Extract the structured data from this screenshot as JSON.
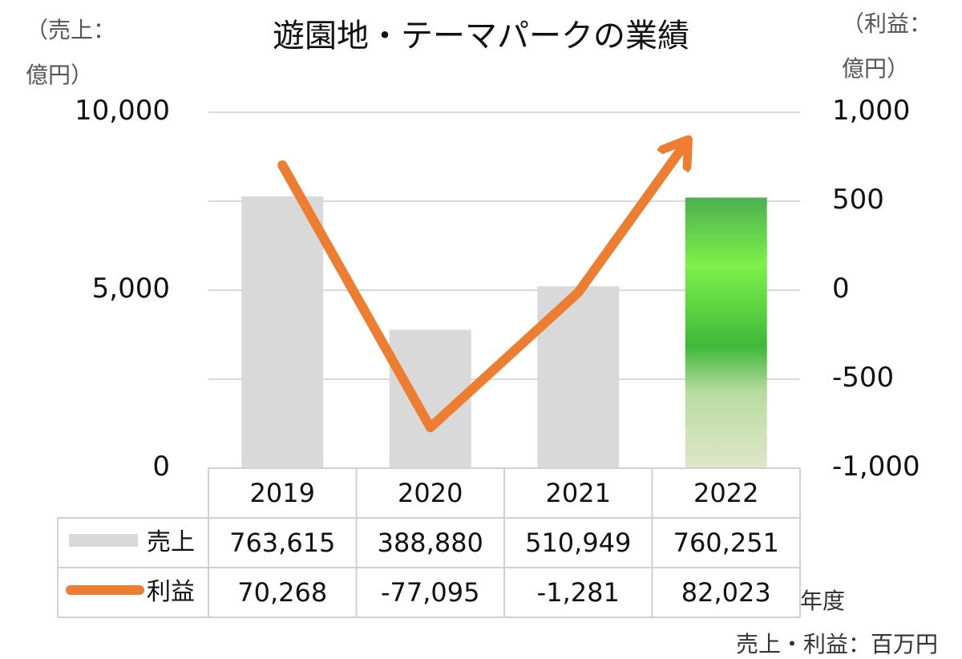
{
  "title": "遊園地・テーマパークの業績",
  "left_axis_unit": [
    "（売上：",
    "億円）"
  ],
  "right_axis_unit": [
    "（利益：",
    "億円）"
  ],
  "footnote": "売上・利益：百万円",
  "x_axis_label": "年度",
  "colors": {
    "sales_bar": "#d9d9d9",
    "profit_line": "#ed7d31",
    "highlight_bar_top": "#4caf50",
    "highlight_bar_mid": "#7ef04a",
    "highlight_bar_bottom": "#dfe6c8",
    "gridline": "#d9d9d9"
  },
  "chart_data": {
    "type": "bar",
    "categories": [
      "2019",
      "2020",
      "2021",
      "2022"
    ],
    "series": [
      {
        "name": "売上",
        "type": "bar",
        "axis": "left",
        "values": [
          7636.15,
          3888.8,
          5109.49,
          7602.51
        ]
      },
      {
        "name": "利益",
        "type": "line",
        "axis": "right",
        "values": [
          702.68,
          -770.95,
          -12.81,
          820.23
        ]
      }
    ],
    "left_axis": {
      "ylim": [
        0,
        10000
      ],
      "ticks": [
        "0",
        "5,000",
        "10,000"
      ]
    },
    "right_axis": {
      "ylim": [
        -1000,
        1000
      ],
      "ticks": [
        "-1,000",
        "-500",
        "0",
        "500",
        "1,000"
      ]
    },
    "highlighted_category": "2022",
    "grid": true,
    "data_table": {
      "rows": [
        {
          "label": "売上",
          "values": [
            "763,615",
            "388,880",
            "510,949",
            "760,251"
          ]
        },
        {
          "label": "利益",
          "values": [
            "70,268",
            "-77,095",
            "-1,281",
            "82,023"
          ]
        }
      ]
    }
  }
}
